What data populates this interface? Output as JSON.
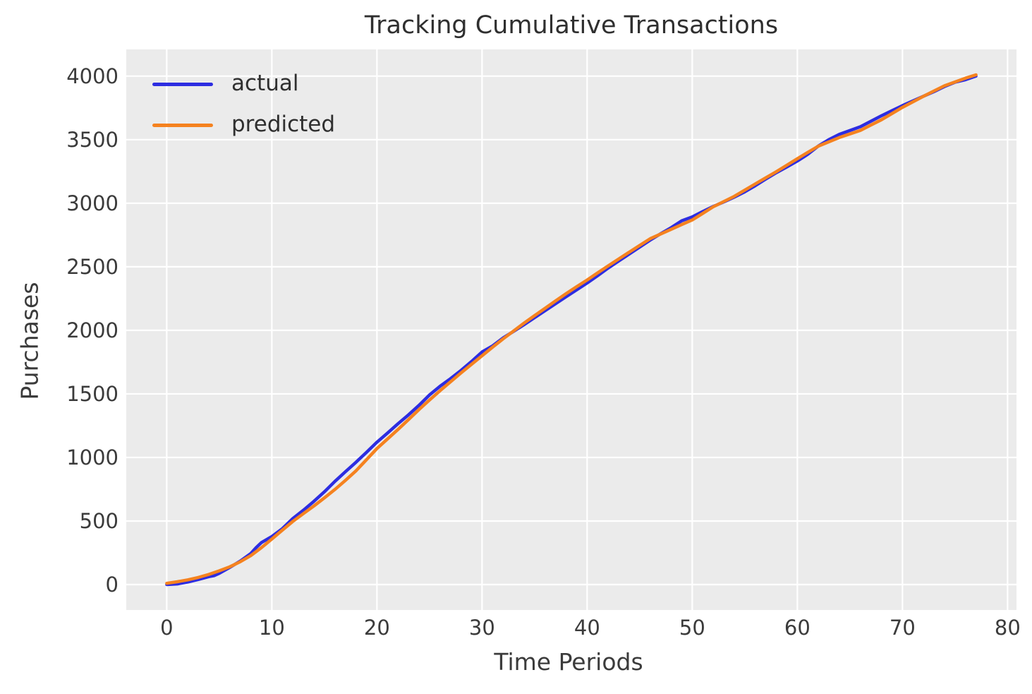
{
  "figure": {
    "title": "Tracking Cumulative Transactions"
  },
  "colors": {
    "actual_line": "#2d2de1",
    "predicted_line": "#f5821f",
    "plot_background": "#ebebeb",
    "gridline": "#ffffff",
    "tick_text": "#3b3b3b",
    "title_text": "#2f2f2f"
  },
  "legend": {
    "position": "upper left",
    "items": [
      {
        "label": "actual",
        "color": "#2d2de1"
      },
      {
        "label": "predicted",
        "color": "#f5821f"
      }
    ]
  },
  "chart_data": {
    "type": "line",
    "title": "Tracking Cumulative Transactions",
    "xlabel": "Time Periods",
    "ylabel": "Purchases",
    "xlim": [
      -3.85,
      80.85
    ],
    "ylim": [
      -200,
      4210
    ],
    "x_ticks": [
      0,
      10,
      20,
      30,
      40,
      50,
      60,
      70,
      80
    ],
    "y_ticks": [
      0,
      500,
      1000,
      1500,
      2000,
      2500,
      3000,
      3500,
      4000
    ],
    "grid": true,
    "legend_position": "upper left",
    "series": [
      {
        "name": "actual",
        "color": "#2d2de1",
        "points": [
          [
            0,
            0
          ],
          [
            1,
            5
          ],
          [
            2,
            20
          ],
          [
            3,
            40
          ],
          [
            4,
            62
          ],
          [
            4.5,
            70
          ],
          [
            5,
            88
          ],
          [
            6,
            135
          ],
          [
            7,
            185
          ],
          [
            8,
            245
          ],
          [
            8.5,
            290
          ],
          [
            9,
            330
          ],
          [
            10,
            378
          ],
          [
            11,
            440
          ],
          [
            12,
            520
          ],
          [
            13,
            585
          ],
          [
            14,
            655
          ],
          [
            15,
            730
          ],
          [
            16,
            812
          ],
          [
            17,
            888
          ],
          [
            18,
            962
          ],
          [
            19,
            1040
          ],
          [
            20,
            1120
          ],
          [
            21,
            1192
          ],
          [
            22,
            1265
          ],
          [
            23,
            1335
          ],
          [
            24,
            1410
          ],
          [
            25,
            1492
          ],
          [
            26,
            1560
          ],
          [
            27,
            1620
          ],
          [
            28,
            1685
          ],
          [
            29,
            1755
          ],
          [
            30,
            1830
          ],
          [
            31,
            1878
          ],
          [
            32,
            1940
          ],
          [
            33,
            1992
          ],
          [
            34,
            2045
          ],
          [
            35,
            2100
          ],
          [
            36,
            2155
          ],
          [
            37,
            2210
          ],
          [
            38,
            2265
          ],
          [
            39,
            2318
          ],
          [
            40,
            2372
          ],
          [
            41,
            2430
          ],
          [
            42,
            2490
          ],
          [
            43,
            2545
          ],
          [
            44,
            2600
          ],
          [
            45,
            2655
          ],
          [
            46,
            2710
          ],
          [
            47,
            2760
          ],
          [
            48,
            2808
          ],
          [
            49,
            2862
          ],
          [
            50,
            2892
          ],
          [
            51,
            2935
          ],
          [
            52,
            2975
          ],
          [
            53,
            3010
          ],
          [
            54,
            3048
          ],
          [
            55,
            3090
          ],
          [
            56,
            3138
          ],
          [
            57,
            3190
          ],
          [
            58,
            3240
          ],
          [
            59,
            3285
          ],
          [
            60,
            3332
          ],
          [
            61,
            3385
          ],
          [
            62,
            3450
          ],
          [
            63,
            3500
          ],
          [
            64,
            3542
          ],
          [
            65,
            3572
          ],
          [
            66,
            3602
          ],
          [
            67,
            3645
          ],
          [
            68,
            3688
          ],
          [
            69,
            3728
          ],
          [
            70,
            3768
          ],
          [
            71,
            3805
          ],
          [
            72,
            3842
          ],
          [
            73,
            3878
          ],
          [
            74,
            3918
          ],
          [
            75,
            3952
          ],
          [
            76,
            3972
          ],
          [
            77,
            4000
          ]
        ]
      },
      {
        "name": "predicted",
        "color": "#f5821f",
        "points": [
          [
            0,
            10
          ],
          [
            1,
            22
          ],
          [
            2,
            37
          ],
          [
            3,
            56
          ],
          [
            4,
            80
          ],
          [
            5,
            108
          ],
          [
            6,
            140
          ],
          [
            7,
            180
          ],
          [
            8,
            228
          ],
          [
            9,
            290
          ],
          [
            10,
            358
          ],
          [
            11,
            428
          ],
          [
            12,
            497
          ],
          [
            13,
            558
          ],
          [
            14,
            618
          ],
          [
            15,
            682
          ],
          [
            16,
            748
          ],
          [
            17,
            820
          ],
          [
            18,
            895
          ],
          [
            19,
            982
          ],
          [
            20,
            1070
          ],
          [
            21,
            1145
          ],
          [
            22,
            1220
          ],
          [
            23,
            1298
          ],
          [
            24,
            1377
          ],
          [
            25,
            1452
          ],
          [
            26,
            1525
          ],
          [
            27,
            1595
          ],
          [
            28,
            1665
          ],
          [
            29,
            1733
          ],
          [
            30,
            1800
          ],
          [
            31,
            1867
          ],
          [
            32,
            1933
          ],
          [
            33,
            1995
          ],
          [
            34,
            2057
          ],
          [
            35,
            2116
          ],
          [
            36,
            2174
          ],
          [
            37,
            2232
          ],
          [
            38,
            2289
          ],
          [
            39,
            2343
          ],
          [
            40,
            2396
          ],
          [
            41,
            2452
          ],
          [
            42,
            2507
          ],
          [
            43,
            2561
          ],
          [
            44,
            2615
          ],
          [
            45,
            2668
          ],
          [
            46,
            2721
          ],
          [
            47,
            2758
          ],
          [
            48,
            2795
          ],
          [
            49,
            2832
          ],
          [
            50,
            2868
          ],
          [
            51,
            2920
          ],
          [
            52,
            2972
          ],
          [
            53,
            3013
          ],
          [
            54,
            3054
          ],
          [
            55,
            3103
          ],
          [
            56,
            3152
          ],
          [
            57,
            3200
          ],
          [
            58,
            3248
          ],
          [
            59,
            3299
          ],
          [
            60,
            3350
          ],
          [
            61,
            3400
          ],
          [
            62,
            3449
          ],
          [
            63,
            3483
          ],
          [
            64,
            3517
          ],
          [
            65,
            3545
          ],
          [
            66,
            3573
          ],
          [
            67,
            3615
          ],
          [
            68,
            3656
          ],
          [
            69,
            3705
          ],
          [
            70,
            3754
          ],
          [
            71,
            3798
          ],
          [
            72,
            3841
          ],
          [
            73,
            3883
          ],
          [
            74,
            3924
          ],
          [
            75,
            3954
          ],
          [
            76,
            3984
          ],
          [
            77,
            4010
          ]
        ]
      }
    ]
  }
}
